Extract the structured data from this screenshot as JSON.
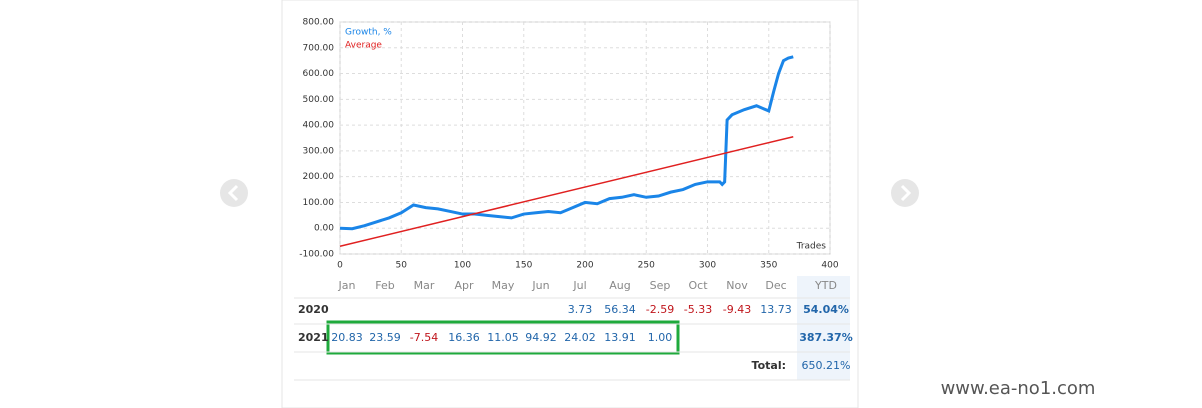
{
  "chart_data": {
    "type": "line",
    "series": [
      {
        "name": "Growth, %",
        "color": "#1a85e8",
        "x": [
          0,
          10,
          20,
          30,
          40,
          50,
          55,
          60,
          70,
          80,
          90,
          100,
          110,
          120,
          130,
          140,
          150,
          160,
          170,
          180,
          190,
          200,
          210,
          220,
          230,
          240,
          250,
          260,
          270,
          280,
          290,
          300,
          310,
          312,
          314,
          316,
          320,
          330,
          340,
          350,
          354,
          358,
          362,
          366,
          370
        ],
        "values": [
          0,
          -2,
          10,
          25,
          40,
          60,
          75,
          90,
          80,
          75,
          65,
          55,
          55,
          50,
          45,
          40,
          55,
          60,
          65,
          60,
          80,
          100,
          95,
          115,
          120,
          130,
          120,
          125,
          140,
          150,
          170,
          180,
          180,
          170,
          180,
          420,
          440,
          460,
          475,
          455,
          530,
          600,
          650,
          660,
          665
        ]
      },
      {
        "name": "Average",
        "color": "#e02020",
        "x": [
          0,
          370
        ],
        "values": [
          -70,
          355
        ]
      }
    ],
    "x_label": "Trades",
    "xlim": [
      0,
      400
    ],
    "xticks": [
      0,
      50,
      100,
      150,
      200,
      250,
      300,
      350,
      400
    ],
    "ylim": [
      -100,
      800
    ],
    "yticks": [
      {
        "value": -100,
        "label": "-100.00"
      },
      {
        "value": 0,
        "label": "0.00"
      },
      {
        "value": 100,
        "label": "100.00"
      },
      {
        "value": 200,
        "label": "200.00"
      },
      {
        "value": 300,
        "label": "300.00"
      },
      {
        "value": 400,
        "label": "400.00"
      },
      {
        "value": 500,
        "label": "500.00"
      },
      {
        "value": 600,
        "label": "600.00"
      },
      {
        "value": 700,
        "label": "700.00"
      },
      {
        "value": 800,
        "label": "800.00"
      }
    ],
    "grid": true
  },
  "table": {
    "header": [
      "Jan",
      "Feb",
      "Mar",
      "Apr",
      "May",
      "Jun",
      "Jul",
      "Aug",
      "Sep",
      "Oct",
      "Nov",
      "Dec",
      "YTD"
    ],
    "rows": [
      {
        "year": "2020",
        "cells": [
          null,
          null,
          null,
          null,
          null,
          null,
          "3.73",
          "56.34",
          "-2.59",
          "-5.33",
          "-9.43",
          "13.73"
        ],
        "ytd": "54.04%"
      },
      {
        "year": "2021",
        "cells": [
          "20.83",
          "23.59",
          "-7.54",
          "16.36",
          "11.05",
          "94.92",
          "24.02",
          "13.91",
          "1.00",
          null,
          null,
          null
        ],
        "ytd": "387.37%"
      }
    ],
    "total_label": "Total:",
    "total": "650.21%"
  },
  "watermark": "www.ea-no1.com"
}
